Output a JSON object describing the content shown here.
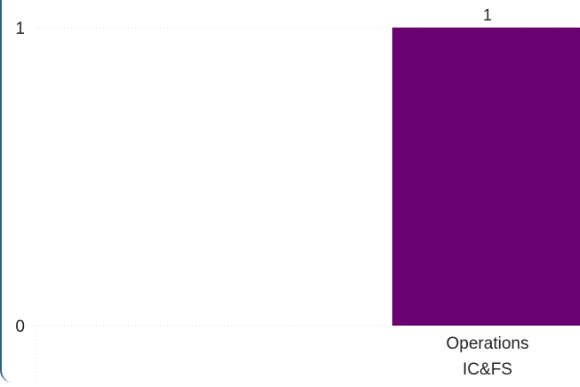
{
  "chart_data": {
    "type": "bar",
    "title": "",
    "xlabel": "",
    "ylabel": "",
    "categories": [
      [
        "Operations",
        "IC&FS"
      ]
    ],
    "values": [
      1
    ],
    "data_labels": [
      "1"
    ],
    "ylim": [
      0,
      1
    ],
    "yticks": [
      0,
      1
    ],
    "ytick_labels": [
      "0",
      "1"
    ],
    "grid": true,
    "legend": "none",
    "bar_color": "#6a0072",
    "grid_color": "#d8d8d8",
    "text_color": "#252423",
    "frame_color": "#2f5f86"
  }
}
